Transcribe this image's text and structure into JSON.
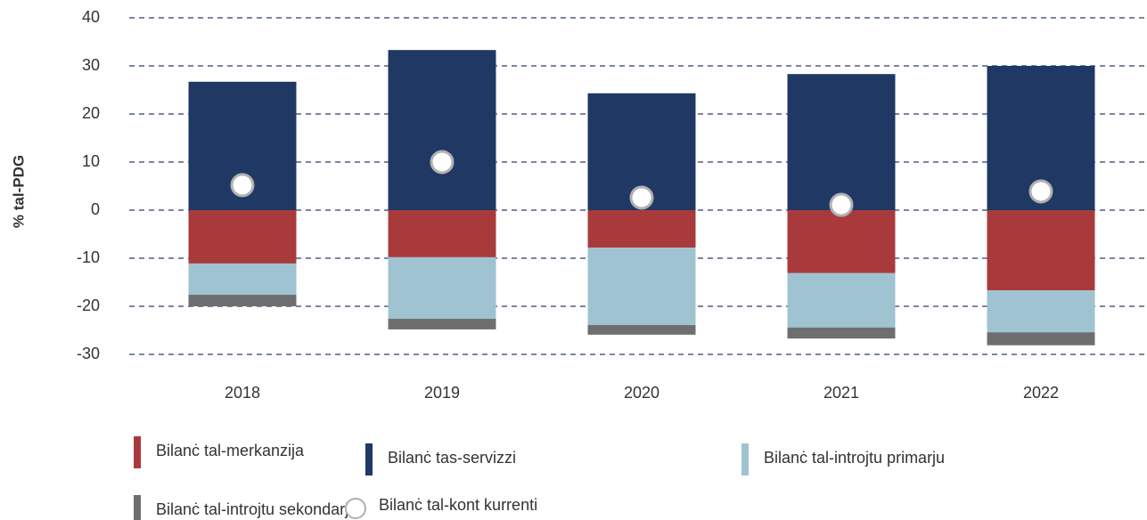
{
  "chart_data": {
    "type": "bar",
    "stacked": true,
    "y_label": "% tal-PDG",
    "categories": [
      "2018",
      "2019",
      "2020",
      "2021",
      "2022"
    ],
    "series": [
      {
        "name": "Bilanċ tal-merkanzija",
        "color": "#a93a3c",
        "values": [
          -11.1,
          -9.8,
          -7.8,
          -13.1,
          -16.7
        ]
      },
      {
        "name": "Bilanċ tas-servizzi",
        "color": "#1f3864",
        "values": [
          26.7,
          33.3,
          24.3,
          28.3,
          30.0
        ]
      },
      {
        "name": "Bilanċ tal-introjtu primarju",
        "color": "#9fc3d1",
        "values": [
          -6.5,
          -12.8,
          -16.1,
          -11.3,
          -8.7
        ]
      },
      {
        "name": "Bilanċ tal-introjtu sekondarju",
        "color": "#6d6e70",
        "values": [
          -2.4,
          -2.2,
          -2.0,
          -2.3,
          -2.7
        ]
      },
      {
        "name": "Bilanċ tal-kont kurrenti",
        "color": "#ffffff",
        "type": "scatter",
        "values": [
          5.2,
          10.0,
          2.6,
          1.1,
          3.9
        ]
      }
    ],
    "ylim": [
      -30,
      40
    ],
    "yticks": [
      -30,
      -20,
      -10,
      0,
      10,
      20,
      30,
      40
    ],
    "grid": true,
    "legend": "bottom"
  }
}
